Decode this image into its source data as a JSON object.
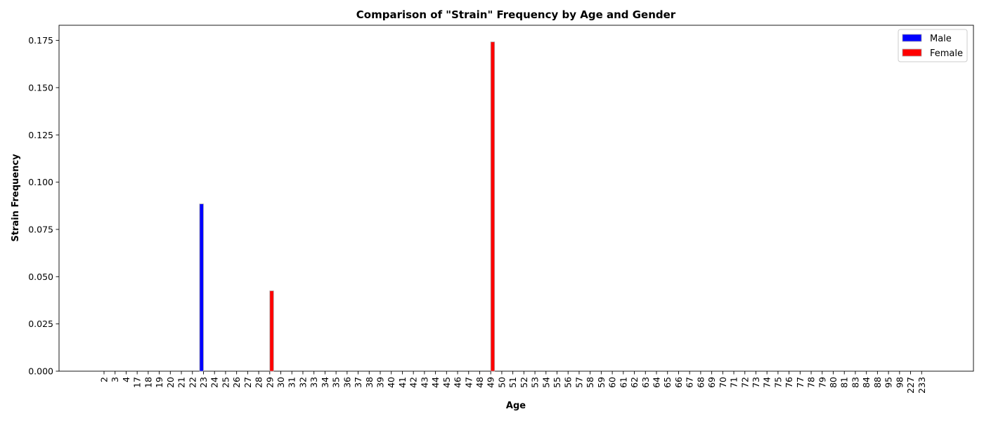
{
  "chart_data": {
    "type": "bar",
    "title": "Comparison of \"Strain\" Frequency by Age and Gender",
    "xlabel": "Age",
    "ylabel": "Strain Frequency",
    "ylim": [
      0,
      0.183
    ],
    "yticks": [
      "0.000",
      "0.025",
      "0.050",
      "0.075",
      "0.100",
      "0.125",
      "0.150",
      "0.175"
    ],
    "categories": [
      "2",
      "3",
      "4",
      "17",
      "18",
      "19",
      "20",
      "21",
      "22",
      "23",
      "24",
      "25",
      "26",
      "27",
      "28",
      "29",
      "30",
      "31",
      "32",
      "33",
      "34",
      "35",
      "36",
      "37",
      "38",
      "39",
      "40",
      "41",
      "42",
      "43",
      "44",
      "45",
      "46",
      "47",
      "48",
      "49",
      "50",
      "51",
      "52",
      "53",
      "54",
      "55",
      "56",
      "57",
      "58",
      "59",
      "60",
      "61",
      "62",
      "63",
      "64",
      "65",
      "66",
      "67",
      "68",
      "69",
      "70",
      "71",
      "72",
      "73",
      "74",
      "75",
      "76",
      "77",
      "78",
      "79",
      "80",
      "81",
      "83",
      "84",
      "88",
      "95",
      "98",
      "227",
      "233"
    ],
    "series": [
      {
        "name": "Male",
        "color": "#0000ff",
        "values": [
          0,
          0,
          0,
          0,
          0,
          0,
          0,
          0,
          0,
          0.0885,
          0,
          0,
          0,
          0,
          0,
          0,
          0,
          0,
          0,
          0,
          0,
          0,
          0,
          0,
          0,
          0,
          0,
          0,
          0,
          0,
          0,
          0,
          0,
          0,
          0,
          0,
          0,
          0,
          0,
          0,
          0,
          0,
          0,
          0,
          0,
          0,
          0,
          0,
          0,
          0,
          0,
          0,
          0,
          0,
          0,
          0,
          0,
          0,
          0,
          0,
          0,
          0,
          0,
          0,
          0,
          0,
          0,
          0,
          0,
          0,
          0,
          0,
          0,
          0,
          0
        ]
      },
      {
        "name": "Female",
        "color": "#ff0000",
        "values": [
          0,
          0,
          0,
          0,
          0,
          0,
          0,
          0,
          0,
          0,
          0,
          0,
          0,
          0,
          0,
          0.0425,
          0,
          0,
          0,
          0,
          0,
          0,
          0,
          0,
          0,
          0,
          0,
          0,
          0,
          0,
          0,
          0,
          0,
          0,
          0,
          0.1742,
          0,
          0,
          0,
          0,
          0,
          0,
          0,
          0,
          0,
          0,
          0,
          0,
          0,
          0,
          0,
          0,
          0,
          0,
          0,
          0,
          0,
          0,
          0,
          0,
          0,
          0,
          0,
          0,
          0,
          0,
          0,
          0,
          0,
          0,
          0,
          0,
          0,
          0,
          0
        ]
      }
    ],
    "legend_position": "top-right",
    "grid": false
  }
}
